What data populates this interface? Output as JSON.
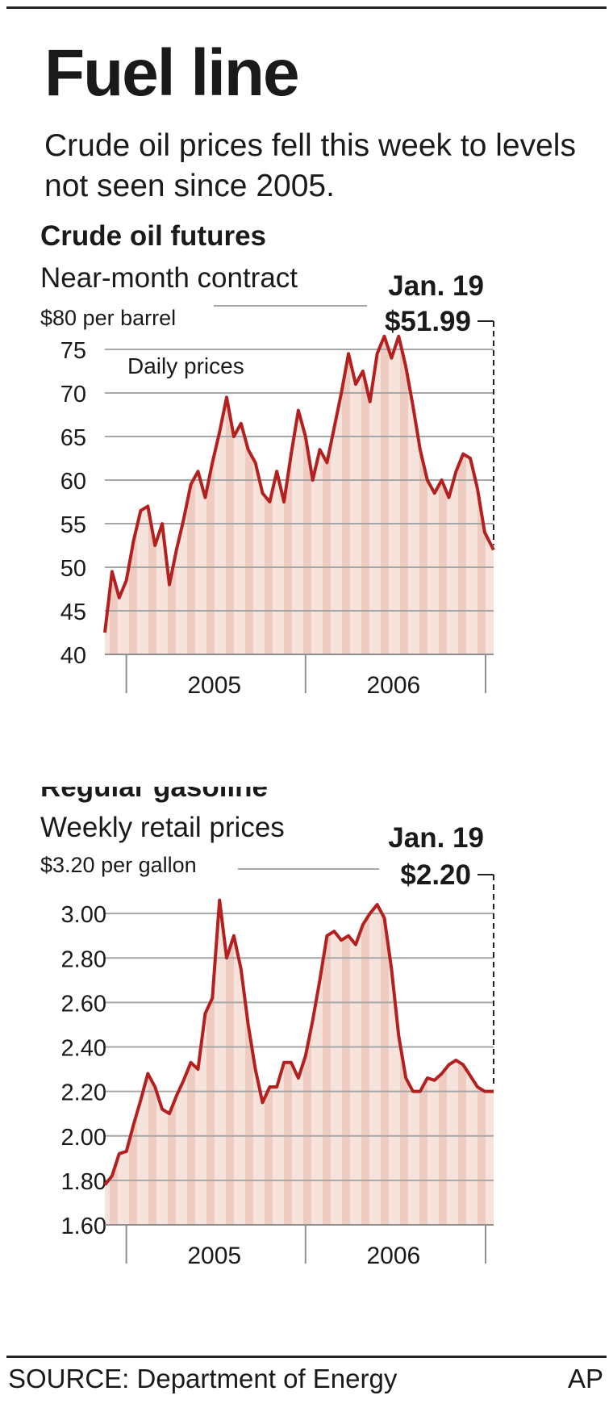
{
  "headline": "Fuel line",
  "intro": "Crude oil prices fell this week to levels not seen since 2005.",
  "source": "SOURCE: Department of Energy",
  "credit": "AP",
  "colors": {
    "line": "#b3201f",
    "fill": "#f6e3dc",
    "band": "#e9b9ab",
    "grid": "#a7a7a7",
    "axis": "#8f8f8f"
  },
  "chart_data": [
    {
      "type": "line",
      "title": "Crude oil futures",
      "subtitle": "Near-month contract",
      "unit_label": "$80 per barrel",
      "series_label": "Daily prices",
      "callout": {
        "date": "Jan. 19",
        "value_label": "$51.99"
      },
      "ylim": [
        40,
        80
      ],
      "y_ticks": [
        40,
        45,
        50,
        55,
        60,
        65,
        70,
        75,
        80
      ],
      "y_tick_labels": [
        "40",
        "45",
        "50",
        "55",
        "60",
        "65",
        "70",
        "75",
        ""
      ],
      "xlim": [
        2004.88,
        2007.05
      ],
      "x_tick_positions": [
        2005,
        2006
      ],
      "x_labels": [
        {
          "label": "2005",
          "at": 2005.5
        },
        {
          "label": "2006",
          "at": 2006.5
        }
      ],
      "grid": true,
      "series": [
        {
          "x": [
            2004.88,
            2004.92,
            2004.96,
            2005.0,
            2005.04,
            2005.08,
            2005.12,
            2005.16,
            2005.2,
            2005.24,
            2005.28,
            2005.32,
            2005.36,
            2005.4,
            2005.44,
            2005.48,
            2005.52,
            2005.56,
            2005.6,
            2005.64,
            2005.68,
            2005.72,
            2005.76,
            2005.8,
            2005.84,
            2005.88,
            2005.92,
            2005.96,
            2006.0,
            2006.04,
            2006.08,
            2006.12,
            2006.16,
            2006.2,
            2006.24,
            2006.28,
            2006.32,
            2006.36,
            2006.4,
            2006.44,
            2006.48,
            2006.52,
            2006.56,
            2006.6,
            2006.64,
            2006.68,
            2006.72,
            2006.76,
            2006.8,
            2006.84,
            2006.88,
            2006.92,
            2006.96,
            2007.0,
            2007.05
          ],
          "values": [
            42.5,
            49.5,
            46.5,
            48.5,
            53.0,
            56.5,
            57.0,
            52.5,
            55.0,
            48.0,
            52.0,
            55.5,
            59.5,
            61.0,
            58.0,
            62.0,
            65.5,
            69.5,
            65.0,
            66.5,
            63.5,
            62.0,
            58.5,
            57.5,
            61.0,
            57.5,
            63.0,
            68.0,
            65.0,
            60.0,
            63.5,
            62.0,
            66.0,
            70.0,
            74.5,
            71.0,
            72.5,
            69.0,
            74.5,
            76.5,
            74.0,
            76.5,
            73.0,
            68.5,
            63.5,
            60.0,
            58.5,
            60.0,
            58.0,
            61.0,
            63.0,
            62.5,
            59.0,
            54.0,
            51.99
          ]
        }
      ]
    },
    {
      "type": "line",
      "title": "Regular gasoline",
      "subtitle": "Weekly retail prices",
      "unit_label": "$3.20 per gallon",
      "callout": {
        "date": "Jan. 19",
        "value_label": "$2.20"
      },
      "ylim": [
        1.6,
        3.2
      ],
      "y_ticks": [
        1.6,
        1.8,
        2.0,
        2.2,
        2.4,
        2.6,
        2.8,
        3.0,
        3.2
      ],
      "y_tick_labels": [
        "1.60",
        "1.80",
        "2.00",
        "2.20",
        "2.40",
        "2.60",
        "2.80",
        "3.00",
        ""
      ],
      "xlim": [
        2004.88,
        2007.05
      ],
      "x_tick_positions": [
        2005,
        2006
      ],
      "x_labels": [
        {
          "label": "2005",
          "at": 2005.5
        },
        {
          "label": "2006",
          "at": 2006.5
        }
      ],
      "grid": true,
      "series": [
        {
          "x": [
            2004.88,
            2004.92,
            2004.96,
            2005.0,
            2005.04,
            2005.08,
            2005.12,
            2005.16,
            2005.2,
            2005.24,
            2005.28,
            2005.32,
            2005.36,
            2005.4,
            2005.44,
            2005.48,
            2005.52,
            2005.56,
            2005.6,
            2005.64,
            2005.68,
            2005.72,
            2005.76,
            2005.8,
            2005.84,
            2005.88,
            2005.92,
            2005.96,
            2006.0,
            2006.04,
            2006.08,
            2006.12,
            2006.16,
            2006.2,
            2006.24,
            2006.28,
            2006.32,
            2006.36,
            2006.4,
            2006.44,
            2006.48,
            2006.52,
            2006.56,
            2006.6,
            2006.64,
            2006.68,
            2006.72,
            2006.76,
            2006.8,
            2006.84,
            2006.88,
            2006.92,
            2006.96,
            2007.0,
            2007.05
          ],
          "values": [
            1.78,
            1.82,
            1.92,
            1.93,
            2.05,
            2.16,
            2.28,
            2.22,
            2.12,
            2.1,
            2.18,
            2.25,
            2.33,
            2.3,
            2.55,
            2.62,
            3.06,
            2.8,
            2.9,
            2.75,
            2.5,
            2.3,
            2.15,
            2.22,
            2.22,
            2.33,
            2.33,
            2.26,
            2.36,
            2.52,
            2.7,
            2.9,
            2.92,
            2.88,
            2.9,
            2.86,
            2.95,
            3.0,
            3.04,
            2.98,
            2.75,
            2.45,
            2.26,
            2.2,
            2.2,
            2.26,
            2.25,
            2.28,
            2.32,
            2.34,
            2.32,
            2.27,
            2.22,
            2.2,
            2.2
          ]
        }
      ]
    }
  ]
}
